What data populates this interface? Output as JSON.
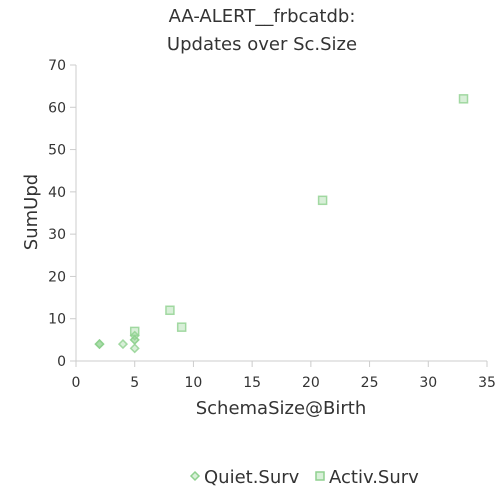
{
  "chart_data": {
    "type": "scatter",
    "title_lines": [
      "AA-ALERT__frbcatdb:",
      "Updates over Sc.Size"
    ],
    "xlabel": "SchemaSize@Birth",
    "ylabel": "SumUpd",
    "xlim": [
      0,
      35
    ],
    "ylim": [
      0,
      70
    ],
    "x_ticks": [
      "0",
      "5",
      "10",
      "15",
      "20",
      "25",
      "30",
      "35"
    ],
    "y_ticks": [
      "0",
      "10",
      "20",
      "30",
      "40",
      "50",
      "60",
      "70"
    ],
    "grid": false,
    "legend_position": "bottom-center",
    "series": [
      {
        "name": "Quiet.Surv",
        "marker": "diamond",
        "color": "#8fd18f",
        "points": [
          {
            "x": 2,
            "y": 4
          },
          {
            "x": 2,
            "y": 4
          },
          {
            "x": 2,
            "y": 4
          },
          {
            "x": 4,
            "y": 4
          },
          {
            "x": 5,
            "y": 3
          },
          {
            "x": 5,
            "y": 5
          },
          {
            "x": 5,
            "y": 5
          },
          {
            "x": 5,
            "y": 6
          }
        ]
      },
      {
        "name": "Activ.Surv",
        "marker": "square",
        "color": "#8fd18f",
        "points": [
          {
            "x": 5,
            "y": 7
          },
          {
            "x": 8,
            "y": 12
          },
          {
            "x": 9,
            "y": 8
          },
          {
            "x": 21,
            "y": 38
          },
          {
            "x": 33,
            "y": 62
          }
        ]
      }
    ]
  }
}
